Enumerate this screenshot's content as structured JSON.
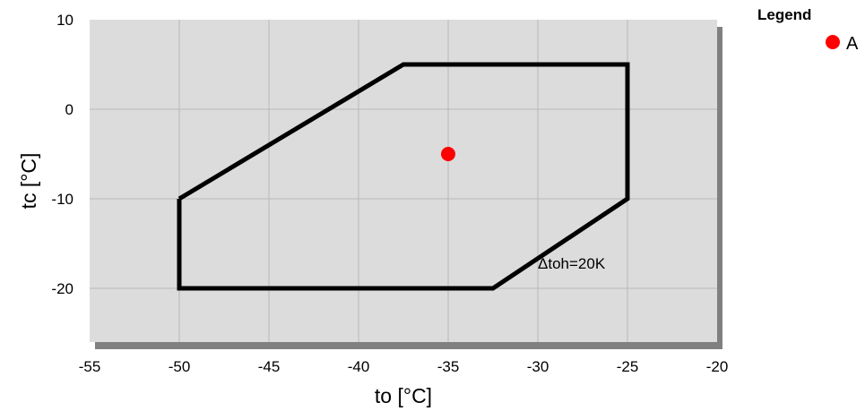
{
  "chart_data": {
    "type": "scatter",
    "title": "",
    "xlabel": "to [°C]",
    "ylabel": "tc [°C]",
    "xlim": [
      -55,
      -20
    ],
    "ylim": [
      -26,
      10
    ],
    "xticks": [
      -55,
      -50,
      -45,
      -40,
      -35,
      -30,
      -25,
      -20
    ],
    "yticks": [
      -20,
      -10,
      0,
      10
    ],
    "grid": true,
    "envelope": {
      "x": [
        -50,
        -37.5,
        -25,
        -25,
        -32.5,
        -50,
        -50
      ],
      "y": [
        -10,
        5,
        5,
        -10,
        -20,
        -20,
        -10
      ]
    },
    "series": [
      {
        "name": "A",
        "x": [
          -35
        ],
        "y": [
          -5
        ],
        "color": "#ff0000"
      }
    ],
    "annotation": {
      "text": "Δtoh=20K",
      "x": -30,
      "y": -20
    },
    "legend": {
      "title": "Legend",
      "position": "top-right"
    },
    "colors": {
      "plot_bg": "#dcdcdc",
      "grid": "#b8b8b8",
      "shadow": "#808080",
      "envelope": "#000000"
    }
  }
}
